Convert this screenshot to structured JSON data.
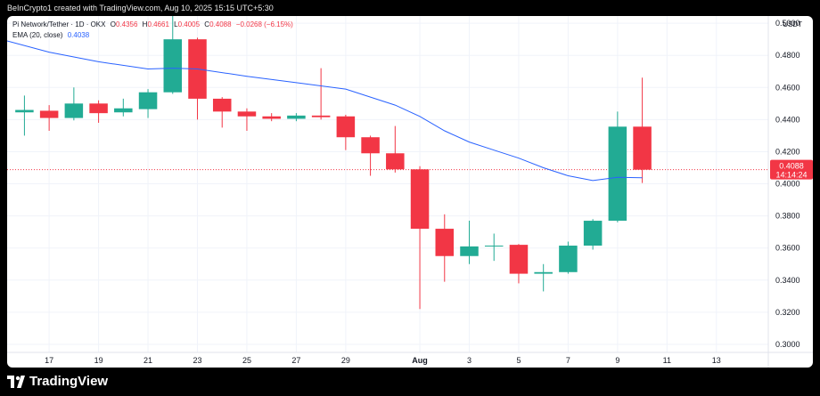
{
  "header": {
    "caption": "BeInCrypto1 created with TradingView.com, Aug 10, 2025 15:15 UTC+5:30"
  },
  "legend": {
    "symbol": "Pi Network/Tether · 1D · OKX",
    "open_label": "O",
    "open": "0.4356",
    "high_label": "H",
    "high": "0.4661",
    "low_label": "L",
    "low": "0.4005",
    "close_label": "C",
    "close": "0.4088",
    "change": "−0.0268 (−6.15%)",
    "ema_label": "EMA (20, close)",
    "ema_value": "0.4038"
  },
  "price_axis_currency": "USDT",
  "price_tag": {
    "price": "0.4088",
    "countdown": "14:14:24"
  },
  "footer": {
    "brand": "TradingView"
  },
  "colors": {
    "up": "#22ab94",
    "down": "#f23645",
    "ema": "#2962ff",
    "grid": "#f0f3fa",
    "text": "#131722"
  },
  "chart_data": {
    "type": "candlestick",
    "y_axis_ticks": [
      "0.5000",
      "0.4800",
      "0.4600",
      "0.4400",
      "0.4200",
      "0.4000",
      "0.3800",
      "0.3600",
      "0.3400",
      "0.3200",
      "0.3000"
    ],
    "ylim": [
      0.295,
      0.5045
    ],
    "x_axis_ticks": [
      {
        "label": "17",
        "day": 17
      },
      {
        "label": "19",
        "day": 19
      },
      {
        "label": "21",
        "day": 21
      },
      {
        "label": "23",
        "day": 23
      },
      {
        "label": "25",
        "day": 25
      },
      {
        "label": "27",
        "day": 27
      },
      {
        "label": "29",
        "day": 29
      },
      {
        "label": "Aug",
        "day": 32
      },
      {
        "label": "3",
        "day": 34
      },
      {
        "label": "5",
        "day": 36
      },
      {
        "label": "7",
        "day": 38
      },
      {
        "label": "9",
        "day": 40
      },
      {
        "label": "11",
        "day": 42
      },
      {
        "label": "13",
        "day": 44
      }
    ],
    "xlim": [
      15.3,
      46.1
    ],
    "candles": [
      {
        "day": 16,
        "o": 0.4445,
        "h": 0.455,
        "l": 0.43,
        "c": 0.446
      },
      {
        "day": 17,
        "o": 0.4455,
        "h": 0.449,
        "l": 0.433,
        "c": 0.441
      },
      {
        "day": 18,
        "o": 0.441,
        "h": 0.46,
        "l": 0.4395,
        "c": 0.45
      },
      {
        "day": 19,
        "o": 0.45,
        "h": 0.452,
        "l": 0.438,
        "c": 0.444
      },
      {
        "day": 20,
        "o": 0.4445,
        "h": 0.453,
        "l": 0.442,
        "c": 0.447
      },
      {
        "day": 21,
        "o": 0.4465,
        "h": 0.459,
        "l": 0.441,
        "c": 0.457
      },
      {
        "day": 22,
        "o": 0.457,
        "h": 0.51,
        "l": 0.456,
        "c": 0.49
      },
      {
        "day": 23,
        "o": 0.49,
        "h": 0.491,
        "l": 0.44,
        "c": 0.453
      },
      {
        "day": 24,
        "o": 0.453,
        "h": 0.454,
        "l": 0.435,
        "c": 0.445
      },
      {
        "day": 25,
        "o": 0.445,
        "h": 0.447,
        "l": 0.433,
        "c": 0.442
      },
      {
        "day": 26,
        "o": 0.442,
        "h": 0.444,
        "l": 0.439,
        "c": 0.4405
      },
      {
        "day": 27,
        "o": 0.4405,
        "h": 0.444,
        "l": 0.439,
        "c": 0.4425
      },
      {
        "day": 28,
        "o": 0.4425,
        "h": 0.472,
        "l": 0.44,
        "c": 0.4415
      },
      {
        "day": 29,
        "o": 0.442,
        "h": 0.443,
        "l": 0.421,
        "c": 0.429
      },
      {
        "day": 30,
        "o": 0.429,
        "h": 0.43,
        "l": 0.405,
        "c": 0.419
      },
      {
        "day": 31,
        "o": 0.419,
        "h": 0.436,
        "l": 0.407,
        "c": 0.409
      },
      {
        "day": 32,
        "o": 0.409,
        "h": 0.411,
        "l": 0.322,
        "c": 0.372
      },
      {
        "day": 33,
        "o": 0.372,
        "h": 0.381,
        "l": 0.339,
        "c": 0.355
      },
      {
        "day": 34,
        "o": 0.355,
        "h": 0.377,
        "l": 0.35,
        "c": 0.361
      },
      {
        "day": 35,
        "o": 0.361,
        "h": 0.369,
        "l": 0.352,
        "c": 0.3615
      },
      {
        "day": 36,
        "o": 0.362,
        "h": 0.3625,
        "l": 0.338,
        "c": 0.344
      },
      {
        "day": 37,
        "o": 0.344,
        "h": 0.35,
        "l": 0.333,
        "c": 0.345
      },
      {
        "day": 38,
        "o": 0.345,
        "h": 0.364,
        "l": 0.344,
        "c": 0.3615
      },
      {
        "day": 39,
        "o": 0.3615,
        "h": 0.378,
        "l": 0.359,
        "c": 0.377
      },
      {
        "day": 40,
        "o": 0.377,
        "h": 0.445,
        "l": 0.376,
        "c": 0.4356
      },
      {
        "day": 41,
        "o": 0.4356,
        "h": 0.4661,
        "l": 0.4005,
        "c": 0.4088
      }
    ],
    "ema": {
      "name": "EMA (20, close)",
      "points": [
        [
          15.3,
          0.489
        ],
        [
          17,
          0.482
        ],
        [
          19,
          0.476
        ],
        [
          21,
          0.4715
        ],
        [
          22,
          0.472
        ],
        [
          23,
          0.4715
        ],
        [
          25,
          0.467
        ],
        [
          27,
          0.463
        ],
        [
          29,
          0.459
        ],
        [
          31,
          0.449
        ],
        [
          32,
          0.442
        ],
        [
          33,
          0.433
        ],
        [
          34,
          0.426
        ],
        [
          35,
          0.421
        ],
        [
          36,
          0.416
        ],
        [
          37,
          0.41
        ],
        [
          38,
          0.405
        ],
        [
          39,
          0.402
        ],
        [
          40,
          0.404
        ],
        [
          41,
          0.4038
        ]
      ]
    },
    "last_price": 0.4088
  }
}
